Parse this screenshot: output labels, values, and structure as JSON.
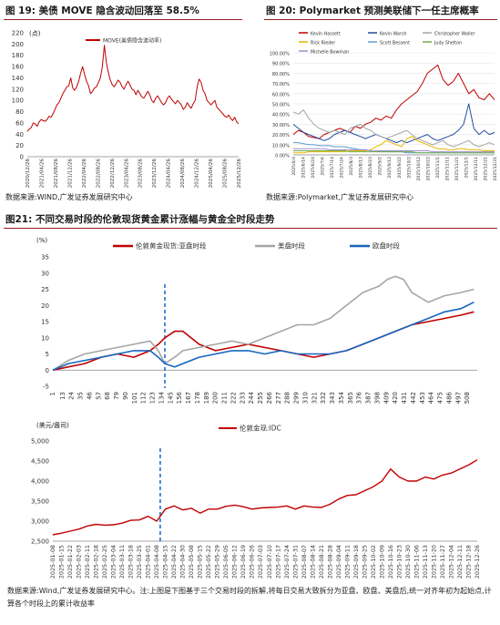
{
  "fig19": {
    "title": "图 19:  美债 MOVE 隐含波动回落至 58.5%",
    "source": "数据来源:WIND,广发证券发展研究中心"
  },
  "fig20": {
    "title": "图 20:  Polymarket 预测美联储下一任主席概率",
    "source": "数据来源:Polymarket,广发证券发展研究中心"
  },
  "fig21": {
    "title": "图21: 不同交易时段的伦敦现货黄金累计涨幅与黄金全时段走势"
  },
  "footer": {
    "note": "数据来源:Wind,广发证券发展研究中心。注:上图是下图基于三个交易时段的拆解,将每日交易大致拆分为亚盘、欧盘、美盘后,统一对齐年初为起始点,计算各个时段上的累计收益率"
  },
  "chart_data": [
    {
      "id": "move",
      "type": "line",
      "title": "",
      "unit_label": "(点)",
      "ylim": [
        0,
        220
      ],
      "yticks": [
        0,
        20,
        40,
        60,
        80,
        100,
        120,
        140,
        160,
        180,
        200,
        220
      ],
      "x_labels": [
        "2020/12/26",
        "2021/04/26",
        "2021/08/26",
        "2021/12/26",
        "2022/04/26",
        "2022/08/26",
        "2022/12/26",
        "2023/04/26",
        "2023/08/26",
        "2023/12/26",
        "2024/04/26",
        "2024/08/26",
        "2024/12/26",
        "2025/04/26",
        "2025/08/26",
        "2025/12/26"
      ],
      "grid": false,
      "legend_position": "top-center",
      "series": [
        {
          "name": "MOVE(美债隐含波动率)",
          "color": "#c00000",
          "values": [
            45,
            49,
            52,
            60,
            58,
            54,
            62,
            66,
            64,
            63,
            66,
            72,
            70,
            76,
            84,
            92,
            96,
            104,
            112,
            118,
            124,
            126,
            140,
            122,
            118,
            124,
            134,
            148,
            160,
            146,
            134,
            126,
            112,
            116,
            122,
            124,
            132,
            140,
            160,
            198,
            168,
            150,
            136,
            128,
            124,
            130,
            136,
            132,
            124,
            120,
            128,
            134,
            128,
            120,
            118,
            110,
            118,
            112,
            106,
            104,
            110,
            116,
            110,
            100,
            96,
            104,
            108,
            102,
            96,
            92,
            96,
            104,
            108,
            102,
            98,
            94,
            100,
            96,
            92,
            84,
            88,
            96,
            90,
            86,
            94,
            100,
            124,
            138,
            132,
            118,
            112,
            100,
            96,
            92,
            96,
            100,
            88,
            84,
            80,
            76,
            72,
            70,
            74,
            68,
            64,
            70,
            62,
            58.5
          ]
        }
      ]
    },
    {
      "id": "polymarket",
      "type": "line",
      "title": "",
      "ylim": [
        0,
        100
      ],
      "yticks": [
        0,
        10,
        20,
        30,
        40,
        50,
        60,
        70,
        80,
        90,
        100
      ],
      "y_tick_format": "percent",
      "x_labels": [
        "2025/6/4",
        "2025/6/14",
        "2025/6/24",
        "2025/7/4",
        "2025/7/14",
        "2025/7/24",
        "2025/8/3",
        "2025/8/13",
        "2025/8/23",
        "2025/9/2",
        "2025/9/12",
        "2025/9/22",
        "2025/10/2",
        "2025/10/12",
        "2025/10/22",
        "2025/11/1",
        "2025/11/11",
        "2025/11/21",
        "2025/12/1",
        "2025/12/11",
        "2025/12/21",
        "2025/12/31"
      ],
      "grid": true,
      "legend_position": "top",
      "series": [
        {
          "name": "Kevin Hassett",
          "color": "#c00000",
          "values": [
            20,
            24,
            22,
            18,
            17,
            16,
            20,
            22,
            24,
            26,
            24,
            22,
            28,
            26,
            30,
            32,
            36,
            34,
            38,
            36,
            44,
            50,
            54,
            58,
            62,
            70,
            80,
            84,
            88,
            74,
            68,
            72,
            80,
            70,
            60,
            64,
            56,
            54,
            60,
            54
          ]
        },
        {
          "name": "Kevin Warsh",
          "color": "#1f4e9c",
          "values": [
            30,
            26,
            22,
            20,
            18,
            16,
            14,
            16,
            20,
            22,
            24,
            22,
            20,
            18,
            16,
            18,
            20,
            18,
            16,
            14,
            12,
            14,
            12,
            14,
            16,
            18,
            20,
            16,
            14,
            16,
            18,
            20,
            24,
            30,
            50,
            26,
            20,
            24,
            20,
            22
          ]
        },
        {
          "name": "Christopher Waller",
          "color": "#a6a6a6",
          "values": [
            42,
            40,
            44,
            36,
            30,
            26,
            24,
            22,
            24,
            22,
            20,
            26,
            28,
            30,
            26,
            24,
            20,
            18,
            16,
            18,
            20,
            22,
            24,
            20,
            16,
            14,
            12,
            10,
            12,
            14,
            10,
            8,
            10,
            12,
            14,
            10,
            8,
            10,
            12,
            10
          ]
        },
        {
          "name": "Rick Rieder",
          "color": "#e8b400",
          "values": [
            2,
            2,
            2,
            3,
            3,
            3,
            3,
            3,
            3,
            3,
            3,
            4,
            4,
            4,
            4,
            5,
            8,
            10,
            14,
            12,
            10,
            8,
            16,
            18,
            14,
            12,
            10,
            8,
            6,
            6,
            5,
            5,
            6,
            6,
            5,
            5,
            5,
            4,
            4,
            4
          ]
        },
        {
          "name": "Scott Bessent",
          "color": "#5b9bd5",
          "values": [
            12,
            12,
            11,
            10,
            10,
            9,
            9,
            9,
            8,
            8,
            8,
            7,
            6,
            5,
            5,
            4,
            4,
            3,
            3,
            3,
            3,
            3,
            2,
            2,
            2,
            2,
            2,
            2,
            2,
            2,
            2,
            2,
            2,
            2,
            2,
            2,
            2,
            2,
            2,
            2
          ]
        },
        {
          "name": "Judy Shelton",
          "color": "#70ad47",
          "values": [
            4,
            4,
            4,
            4,
            4,
            4,
            4,
            4,
            4,
            4,
            4,
            3,
            3,
            3,
            3,
            3,
            3,
            3,
            3,
            3,
            3,
            3,
            3,
            3,
            2,
            2,
            2,
            2,
            2,
            2,
            2,
            2,
            2,
            2,
            2,
            2,
            2,
            2,
            2,
            2
          ]
        },
        {
          "name": "Michelle Bowman",
          "color": "#9e8fc8",
          "values": [
            6,
            6,
            6,
            6,
            6,
            6,
            6,
            5,
            5,
            5,
            5,
            5,
            5,
            5,
            5,
            4,
            4,
            4,
            4,
            4,
            4,
            4,
            4,
            4,
            4,
            4,
            4,
            3,
            3,
            3,
            3,
            3,
            3,
            3,
            3,
            3,
            3,
            3,
            3,
            3
          ]
        }
      ]
    },
    {
      "id": "sessions",
      "type": "line",
      "title": "",
      "unit_label": "(%)",
      "ylim": [
        -5,
        35
      ],
      "yticks": [
        -5,
        0,
        5,
        10,
        15,
        20,
        25,
        30,
        35
      ],
      "x_labels": [
        "1",
        "13",
        "24",
        "35",
        "46",
        "57",
        "68",
        "79",
        "90",
        "101",
        "112",
        "123",
        "134",
        "145",
        "156",
        "167",
        "178",
        "189",
        "200",
        "211",
        "222",
        "233",
        "244",
        "255",
        "266",
        "277",
        "288",
        "299",
        "310",
        "321",
        "332",
        "343",
        "354",
        "365",
        "376",
        "387",
        "398",
        "409",
        "420",
        "431",
        "442",
        "453",
        "464",
        "475",
        "486",
        "497",
        "508"
      ],
      "x_range": [
        1,
        520
      ],
      "event_line_x": 138,
      "grid": false,
      "legend_position": "top",
      "series": [
        {
          "name": "伦敦黄金现货:亚盘时段",
          "color": "#c00000",
          "x": [
            1,
            20,
            40,
            60,
            80,
            100,
            120,
            130,
            138,
            150,
            160,
            180,
            200,
            220,
            240,
            260,
            280,
            300,
            320,
            340,
            360,
            380,
            400,
            420,
            440,
            460,
            480,
            500,
            516
          ],
          "values": [
            0,
            1,
            2,
            4,
            5,
            4,
            6,
            8,
            10,
            12,
            12,
            8,
            6,
            7,
            8,
            7,
            6,
            5,
            4,
            5,
            6,
            8,
            10,
            12,
            14,
            15,
            16,
            17,
            18
          ]
        },
        {
          "name": "美盘时段",
          "color": "#a6a6a6",
          "x": [
            1,
            20,
            40,
            60,
            80,
            100,
            120,
            130,
            138,
            150,
            160,
            180,
            200,
            220,
            240,
            260,
            280,
            300,
            320,
            340,
            360,
            380,
            400,
            410,
            420,
            430,
            440,
            460,
            480,
            500,
            516
          ],
          "values": [
            0,
            3,
            5,
            6,
            7,
            8,
            9,
            6,
            2,
            4,
            6,
            7,
            8,
            9,
            8,
            10,
            12,
            14,
            14,
            16,
            20,
            24,
            26,
            28,
            29,
            28,
            24,
            21,
            23,
            24,
            25
          ]
        },
        {
          "name": "欧盘时段",
          "color": "#1565c0",
          "x": [
            1,
            20,
            40,
            60,
            80,
            100,
            120,
            130,
            138,
            150,
            160,
            180,
            200,
            220,
            240,
            260,
            280,
            300,
            320,
            340,
            360,
            380,
            400,
            420,
            440,
            460,
            480,
            500,
            516
          ],
          "values": [
            0,
            2,
            3,
            4,
            5,
            6,
            6,
            4,
            2,
            1,
            2,
            4,
            5,
            6,
            6,
            5,
            6,
            5,
            5,
            5,
            6,
            8,
            10,
            12,
            14,
            16,
            18,
            19,
            21
          ]
        }
      ]
    },
    {
      "id": "gold",
      "type": "line",
      "title": "",
      "unit_label": "(美元/盎司)",
      "ylim": [
        2500,
        5000
      ],
      "yticks": [
        2500,
        3000,
        3500,
        4000,
        4500,
        5000
      ],
      "y_tick_format": "thousands",
      "x_labels": [
        "2025-01-08",
        "2025-01-15",
        "2025-01-22",
        "2025-02-03",
        "2025-02-11",
        "2025-02-18",
        "2025-02-25",
        "2025-03-04",
        "2025-03-11",
        "2025-03-18",
        "2025-03-25",
        "2025-04-01",
        "2025-04-08",
        "2025-04-15",
        "2025-04-22",
        "2025-04-30",
        "2025-05-08",
        "2025-05-15",
        "2025-05-22",
        "2025-05-29",
        "2025-06-05",
        "2025-06-12",
        "2025-06-19",
        "2025-06-26",
        "2025-07-03",
        "2025-07-10",
        "2025-07-17",
        "2025-07-24",
        "2025-07-31",
        "2025-08-07",
        "2025-08-14",
        "2025-08-21",
        "2025-08-28",
        "2025-09-04",
        "2025-09-11",
        "2025-09-18",
        "2025-09-25",
        "2025-10-02",
        "2025-10-09",
        "2025-10-16",
        "2025-10-23",
        "2025-10-30",
        "2025-11-06",
        "2025-11-13",
        "2025-11-20",
        "2025-11-27",
        "2025-12-04",
        "2025-12-11",
        "2025-12-18",
        "2025-12-26"
      ],
      "event_line_x": 12.4,
      "grid": false,
      "legend_position": "top",
      "series": [
        {
          "name": "伦敦金现:IDC",
          "color": "#c00000",
          "values": [
            2660,
            2700,
            2750,
            2800,
            2880,
            2920,
            2900,
            2910,
            2950,
            3020,
            3030,
            3120,
            3000,
            3300,
            3380,
            3280,
            3320,
            3200,
            3300,
            3300,
            3370,
            3400,
            3360,
            3300,
            3330,
            3340,
            3350,
            3380,
            3300,
            3380,
            3350,
            3340,
            3420,
            3550,
            3640,
            3660,
            3760,
            3860,
            4000,
            4300,
            4100,
            4000,
            4000,
            4100,
            4050,
            4150,
            4200,
            4300,
            4400,
            4530
          ]
        }
      ]
    }
  ]
}
